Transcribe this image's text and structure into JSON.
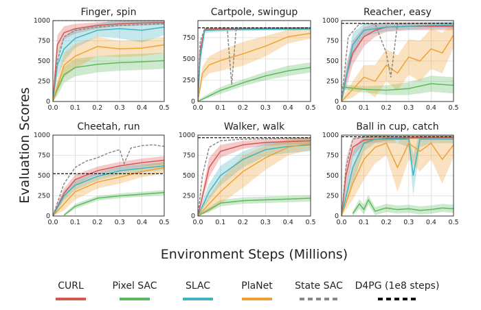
{
  "figure": {
    "xlabel": "Environment Steps (Millions)",
    "ylabel": "Evaluation Scores"
  },
  "legend": [
    {
      "label": "CURL",
      "color": "#d9534f",
      "dash": "solid"
    },
    {
      "label": "Pixel SAC",
      "color": "#5cb85c",
      "dash": "solid"
    },
    {
      "label": "SLAC",
      "color": "#3fb3bf",
      "dash": "solid"
    },
    {
      "label": "PlaNet",
      "color": "#f0a030",
      "dash": "solid"
    },
    {
      "label": "State SAC",
      "color": "#888888",
      "dash": "dashed"
    },
    {
      "label": "D4PG (1e8 steps)",
      "color": "#111111",
      "dash": "dashed"
    }
  ],
  "chart_data": [
    {
      "type": "line",
      "title": "Finger, spin",
      "xlim": [
        0,
        0.5
      ],
      "ylim": [
        0,
        1000
      ],
      "xticks": [
        "0.0",
        "0.1",
        "0.2",
        "0.3",
        "0.4",
        "0.5"
      ],
      "yticks": [
        "0",
        "250",
        "500",
        "750",
        "1000"
      ],
      "ref_line": 1000,
      "series": [
        {
          "name": "CURL",
          "x": [
            0,
            0.02,
            0.05,
            0.1,
            0.2,
            0.3,
            0.4,
            0.5
          ],
          "y": [
            0,
            700,
            850,
            900,
            940,
            960,
            970,
            975
          ],
          "band": [
            60,
            120,
            80,
            60,
            40,
            30,
            30,
            25
          ]
        },
        {
          "name": "Pixel SAC",
          "x": [
            0,
            0.02,
            0.05,
            0.1,
            0.2,
            0.3,
            0.4,
            0.5
          ],
          "y": [
            0,
            150,
            330,
            420,
            460,
            480,
            490,
            505
          ],
          "band": [
            40,
            80,
            100,
            110,
            100,
            100,
            100,
            100
          ]
        },
        {
          "name": "SLAC",
          "x": [
            0,
            0.02,
            0.05,
            0.1,
            0.2,
            0.3,
            0.4,
            0.5
          ],
          "y": [
            0,
            450,
            650,
            780,
            880,
            900,
            880,
            920
          ],
          "band": [
            60,
            150,
            150,
            120,
            80,
            120,
            150,
            100
          ]
        },
        {
          "name": "PlaNet",
          "x": [
            0,
            0.05,
            0.1,
            0.2,
            0.3,
            0.4,
            0.5
          ],
          "y": [
            0,
            450,
            560,
            680,
            650,
            660,
            700
          ],
          "band": [
            50,
            150,
            150,
            120,
            100,
            100,
            100
          ]
        },
        {
          "name": "State SAC",
          "x": [
            0,
            0.02,
            0.05,
            0.1,
            0.2,
            0.3,
            0.4,
            0.5
          ],
          "y": [
            0,
            500,
            800,
            880,
            920,
            940,
            950,
            960
          ],
          "band": [
            0,
            0,
            0,
            0,
            0,
            0,
            0,
            0
          ]
        }
      ]
    },
    {
      "type": "line",
      "title": "Cartpole, swingup",
      "xlim": [
        0,
        0.5
      ],
      "ylim": [
        0,
        950
      ],
      "xticks": [
        "0.0",
        "0.1",
        "0.2",
        "0.3",
        "0.4",
        "0.5"
      ],
      "yticks": [
        "0",
        "250",
        "500",
        "750"
      ],
      "ref_line": 865,
      "series": [
        {
          "name": "CURL",
          "x": [
            0,
            0.01,
            0.03,
            0.1,
            0.2,
            0.3,
            0.4,
            0.5
          ],
          "y": [
            0,
            600,
            845,
            850,
            855,
            855,
            856,
            857
          ],
          "band": [
            30,
            80,
            20,
            15,
            10,
            10,
            10,
            10
          ]
        },
        {
          "name": "Pixel SAC",
          "x": [
            0,
            0.1,
            0.2,
            0.3,
            0.4,
            0.5
          ],
          "y": [
            0,
            130,
            220,
            300,
            360,
            400
          ],
          "band": [
            20,
            40,
            40,
            50,
            60,
            60
          ]
        },
        {
          "name": "SLAC",
          "x": [
            0,
            0.01,
            0.03,
            0.1,
            0.2,
            0.3,
            0.4,
            0.5
          ],
          "y": [
            0,
            500,
            835,
            840,
            845,
            848,
            848,
            850
          ],
          "band": [
            30,
            100,
            30,
            20,
            15,
            15,
            15,
            15
          ]
        },
        {
          "name": "PlaNet",
          "x": [
            0,
            0.02,
            0.05,
            0.1,
            0.2,
            0.3,
            0.4,
            0.5
          ],
          "y": [
            0,
            330,
            430,
            480,
            560,
            650,
            760,
            800
          ],
          "band": [
            40,
            80,
            100,
            120,
            140,
            120,
            80,
            60
          ]
        },
        {
          "name": "State SAC",
          "x": [
            0,
            0.01,
            0.03,
            0.13,
            0.15,
            0.17,
            0.3,
            0.5
          ],
          "y": [
            0,
            700,
            855,
            860,
            200,
            860,
            862,
            865
          ],
          "band": [
            0,
            0,
            0,
            0,
            0,
            0,
            0,
            0
          ]
        }
      ]
    },
    {
      "type": "line",
      "title": "Reacher, easy",
      "xlim": [
        0,
        0.5
      ],
      "ylim": [
        0,
        1000
      ],
      "xticks": [
        "0.0",
        "0.1",
        "0.2",
        "0.3",
        "0.4",
        "0.5"
      ],
      "yticks": [
        "0",
        "250",
        "500",
        "750",
        "1000"
      ],
      "ref_line": 965,
      "series": [
        {
          "name": "CURL",
          "x": [
            0,
            0.02,
            0.05,
            0.1,
            0.15,
            0.2,
            0.3,
            0.4,
            0.5
          ],
          "y": [
            0,
            300,
            600,
            800,
            880,
            920,
            930,
            930,
            930
          ],
          "band": [
            40,
            150,
            150,
            120,
            80,
            60,
            50,
            50,
            50
          ]
        },
        {
          "name": "Pixel SAC",
          "x": [
            0,
            0.1,
            0.2,
            0.3,
            0.4,
            0.5
          ],
          "y": [
            180,
            150,
            140,
            160,
            220,
            200
          ],
          "band": [
            30,
            40,
            60,
            80,
            100,
            100
          ]
        },
        {
          "name": "SLAC",
          "x": [
            0,
            0.05,
            0.1,
            0.15,
            0.2,
            0.3,
            0.4,
            0.5
          ],
          "y": [
            0,
            700,
            880,
            900,
            920,
            930,
            940,
            945
          ],
          "band": [
            40,
            150,
            80,
            60,
            50,
            40,
            40,
            40
          ]
        },
        {
          "name": "PlaNet",
          "x": [
            0,
            0.05,
            0.1,
            0.15,
            0.2,
            0.25,
            0.3,
            0.35,
            0.4,
            0.45,
            0.5
          ],
          "y": [
            0,
            150,
            300,
            250,
            450,
            350,
            550,
            500,
            650,
            600,
            820
          ],
          "band": [
            30,
            100,
            150,
            200,
            200,
            220,
            220,
            250,
            250,
            250,
            150
          ]
        },
        {
          "name": "State SAC",
          "x": [
            0,
            0.03,
            0.08,
            0.15,
            0.2,
            0.22,
            0.25,
            0.35,
            0.5
          ],
          "y": [
            0,
            800,
            960,
            960,
            600,
            300,
            960,
            965,
            965
          ],
          "band": [
            0,
            0,
            0,
            0,
            0,
            0,
            0,
            0,
            0
          ]
        }
      ]
    },
    {
      "type": "line",
      "title": "Cheetah, run",
      "xlim": [
        0,
        0.5
      ],
      "ylim": [
        0,
        1000
      ],
      "xticks": [
        "0.0",
        "0.1",
        "0.2",
        "0.3",
        "0.4",
        "0.5"
      ],
      "yticks": [
        "0",
        "250",
        "500",
        "750",
        "1000"
      ],
      "ref_line": 523,
      "series": [
        {
          "name": "CURL",
          "x": [
            0,
            0.05,
            0.1,
            0.2,
            0.3,
            0.4,
            0.5
          ],
          "y": [
            0,
            280,
            450,
            560,
            620,
            660,
            690
          ],
          "band": [
            30,
            60,
            60,
            50,
            50,
            50,
            50
          ]
        },
        {
          "name": "Pixel SAC",
          "x": [
            0.05,
            0.1,
            0.2,
            0.3,
            0.4,
            0.5
          ],
          "y": [
            10,
            120,
            220,
            250,
            270,
            290
          ],
          "band": [
            20,
            30,
            30,
            30,
            30,
            30
          ]
        },
        {
          "name": "SLAC",
          "x": [
            0,
            0.05,
            0.1,
            0.2,
            0.3,
            0.4,
            0.5
          ],
          "y": [
            0,
            250,
            380,
            490,
            560,
            590,
            620
          ],
          "band": [
            30,
            60,
            60,
            50,
            50,
            50,
            50
          ]
        },
        {
          "name": "PlaNet",
          "x": [
            0,
            0.05,
            0.1,
            0.2,
            0.3,
            0.4,
            0.5
          ],
          "y": [
            0,
            150,
            300,
            420,
            480,
            550,
            600
          ],
          "band": [
            30,
            80,
            100,
            80,
            80,
            70,
            70
          ]
        },
        {
          "name": "State SAC",
          "x": [
            0,
            0.05,
            0.1,
            0.15,
            0.2,
            0.25,
            0.3,
            0.32,
            0.35,
            0.4,
            0.45,
            0.5
          ],
          "y": [
            0,
            400,
            600,
            680,
            720,
            780,
            820,
            650,
            840,
            870,
            880,
            860
          ],
          "band": [
            0,
            0,
            0,
            0,
            0,
            0,
            0,
            0,
            0,
            0,
            0,
            0
          ]
        }
      ]
    },
    {
      "type": "line",
      "title": "Walker, walk",
      "xlim": [
        0,
        0.5
      ],
      "ylim": [
        0,
        1000
      ],
      "xticks": [
        "0.0",
        "0.1",
        "0.2",
        "0.3",
        "0.4",
        "0.5"
      ],
      "yticks": [
        "0",
        "250",
        "500",
        "750",
        "1000"
      ],
      "ref_line": 968,
      "series": [
        {
          "name": "CURL",
          "x": [
            0,
            0.05,
            0.1,
            0.2,
            0.3,
            0.4,
            0.5
          ],
          "y": [
            0,
            600,
            800,
            880,
            910,
            920,
            930
          ],
          "band": [
            40,
            120,
            80,
            50,
            40,
            40,
            40
          ]
        },
        {
          "name": "Pixel SAC",
          "x": [
            0,
            0.05,
            0.1,
            0.2,
            0.3,
            0.4,
            0.5
          ],
          "y": [
            0,
            80,
            160,
            190,
            200,
            210,
            220
          ],
          "band": [
            20,
            30,
            40,
            40,
            40,
            40,
            40
          ]
        },
        {
          "name": "SLAC",
          "x": [
            0,
            0.05,
            0.1,
            0.2,
            0.3,
            0.4,
            0.5
          ],
          "y": [
            0,
            300,
            500,
            700,
            820,
            860,
            880
          ],
          "band": [
            40,
            100,
            120,
            100,
            80,
            80,
            80
          ]
        },
        {
          "name": "PlaNet",
          "x": [
            0,
            0.05,
            0.1,
            0.2,
            0.3,
            0.4,
            0.5
          ],
          "y": [
            0,
            150,
            300,
            550,
            720,
            850,
            900
          ],
          "band": [
            30,
            100,
            150,
            200,
            150,
            100,
            80
          ]
        },
        {
          "name": "State SAC",
          "x": [
            0,
            0.02,
            0.05,
            0.1,
            0.2,
            0.3,
            0.4,
            0.5
          ],
          "y": [
            0,
            500,
            850,
            930,
            950,
            955,
            960,
            962
          ],
          "band": [
            0,
            0,
            0,
            0,
            0,
            0,
            0,
            0
          ]
        }
      ]
    },
    {
      "type": "line",
      "title": "Ball in cup, catch",
      "xlim": [
        0,
        0.5
      ],
      "ylim": [
        0,
        1000
      ],
      "xticks": [
        "0.0",
        "0.1",
        "0.2",
        "0.3",
        "0.4",
        "0.5"
      ],
      "yticks": [
        "0",
        "250",
        "500",
        "750",
        "1000"
      ],
      "ref_line": 980,
      "series": [
        {
          "name": "CURL",
          "x": [
            0,
            0.02,
            0.05,
            0.1,
            0.2,
            0.3,
            0.4,
            0.5
          ],
          "y": [
            0,
            500,
            850,
            940,
            960,
            965,
            968,
            970
          ],
          "band": [
            40,
            200,
            120,
            50,
            30,
            20,
            20,
            20
          ]
        },
        {
          "name": "Pixel SAC",
          "x": [
            0.05,
            0.08,
            0.1,
            0.12,
            0.15,
            0.2,
            0.25,
            0.3,
            0.35,
            0.4,
            0.45,
            0.5
          ],
          "y": [
            30,
            150,
            80,
            200,
            60,
            100,
            80,
            90,
            70,
            80,
            100,
            90
          ],
          "band": [
            30,
            60,
            60,
            60,
            50,
            50,
            50,
            50,
            50,
            50,
            50,
            50
          ]
        },
        {
          "name": "SLAC",
          "x": [
            0,
            0.05,
            0.1,
            0.15,
            0.2,
            0.25,
            0.3,
            0.32,
            0.35,
            0.4,
            0.45,
            0.5
          ],
          "y": [
            0,
            600,
            900,
            950,
            950,
            950,
            950,
            500,
            950,
            950,
            950,
            950
          ],
          "band": [
            40,
            200,
            100,
            50,
            50,
            50,
            100,
            250,
            100,
            50,
            50,
            50
          ]
        },
        {
          "name": "PlaNet",
          "x": [
            0,
            0.05,
            0.1,
            0.15,
            0.2,
            0.25,
            0.3,
            0.35,
            0.4,
            0.45,
            0.5
          ],
          "y": [
            0,
            400,
            700,
            850,
            900,
            600,
            900,
            800,
            900,
            700,
            880
          ],
          "band": [
            30,
            200,
            250,
            200,
            150,
            300,
            200,
            250,
            200,
            300,
            150
          ]
        },
        {
          "name": "State SAC",
          "x": [
            0,
            0.02,
            0.05,
            0.1,
            0.3,
            0.5
          ],
          "y": [
            0,
            600,
            950,
            975,
            978,
            980
          ],
          "band": [
            0,
            0,
            0,
            0,
            0,
            0
          ]
        }
      ]
    }
  ]
}
